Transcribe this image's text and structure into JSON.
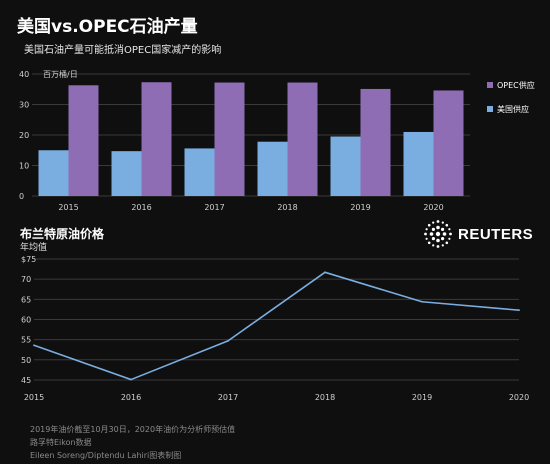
{
  "header": {
    "title": "美国vs.OPEC石油产量",
    "subtitle": "美国石油产量可能抵消OPEC国家减产的影响"
  },
  "brand": {
    "name": "REUTERS",
    "logo_icon": "reuters-dot-globe-icon"
  },
  "footer": {
    "note": "2019年油价截至10月30日，2020年油价为分析师预估值",
    "source": "路孚特Eikon数据",
    "credit": "Eileen Soreng/Diptendu Lahiri图表制图"
  },
  "colors": {
    "background": "#0f0f0f",
    "opec": "#8e6db4",
    "us": "#7aaee0",
    "line": "#7aaee0",
    "grid": "#3a3a3a",
    "axis_text": "#d0d0d0"
  },
  "chart_data": [
    {
      "type": "bar",
      "title": "",
      "unit_label": "百万桶/日",
      "categories": [
        "2015",
        "2016",
        "2017",
        "2018",
        "2019",
        "2020"
      ],
      "series": [
        {
          "name": "美国供应",
          "values": [
            15.0,
            14.7,
            15.6,
            17.8,
            19.5,
            21.0
          ]
        },
        {
          "name": "OPEC供应",
          "values": [
            36.3,
            37.3,
            37.2,
            37.2,
            35.1,
            34.6
          ]
        }
      ],
      "yticks": [
        0,
        10,
        20,
        30,
        40
      ],
      "ylim": [
        0,
        40
      ],
      "legend_position": "right",
      "grid": true
    },
    {
      "type": "line",
      "title": "布兰特原油价格",
      "subtitle": "年均值",
      "x": [
        "2015",
        "2016",
        "2017",
        "2018",
        "2019",
        "2020"
      ],
      "series": [
        {
          "name": "",
          "values": [
            53.6,
            45.1,
            54.7,
            71.7,
            64.4,
            62.3
          ]
        }
      ],
      "ytick_labels": [
        "$75",
        "70",
        "65",
        "60",
        "55",
        "50",
        "45"
      ],
      "yticks": [
        75,
        70,
        65,
        60,
        55,
        50,
        45
      ],
      "ylim": [
        44,
        75
      ],
      "grid": true
    }
  ]
}
